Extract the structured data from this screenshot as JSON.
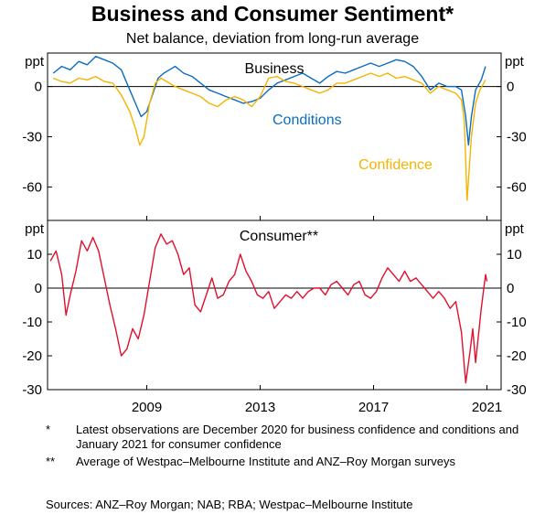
{
  "title": "Business and Consumer Sentiment*",
  "subtitle": "Net balance, deviation from long-run average",
  "colors": {
    "conditions": "#0a6dc1",
    "confidence": "#f4b400",
    "consumer": "#e0102f"
  },
  "notes": [
    {
      "mark": "*",
      "text": "Latest observations are December 2020 for business confidence and conditions and January 2021 for consumer confidence"
    },
    {
      "mark": "**",
      "text": "Average of Westpac–Melbourne Institute and ANZ–Roy Morgan surveys"
    }
  ],
  "sources": "Sources: ANZ–Roy Morgan; NAB; RBA; Westpac–Melbourne Institute",
  "chart_data": [
    {
      "type": "line",
      "title": "Business",
      "unit_label": "ppt",
      "ylim": [
        -80,
        20
      ],
      "yticks": [
        0,
        -30,
        -60
      ],
      "ytick_labels": [
        "0",
        "-30",
        "-60"
      ],
      "xlim": [
        2005.5,
        2021.5
      ],
      "xticks": [
        2009,
        2013,
        2017,
        2021
      ],
      "series": [
        {
          "name": "Conditions",
          "color_key": "conditions",
          "x": [
            2005.7,
            2006.0,
            2006.3,
            2006.6,
            2006.9,
            2007.2,
            2007.5,
            2007.8,
            2008.1,
            2008.4,
            2008.6,
            2008.8,
            2009.0,
            2009.2,
            2009.4,
            2009.6,
            2009.8,
            2010.0,
            2010.3,
            2010.6,
            2010.9,
            2011.2,
            2011.5,
            2011.8,
            2012.1,
            2012.4,
            2012.7,
            2013.0,
            2013.3,
            2013.6,
            2013.9,
            2014.2,
            2014.5,
            2014.8,
            2015.1,
            2015.4,
            2015.7,
            2016.0,
            2016.3,
            2016.6,
            2016.9,
            2017.2,
            2017.5,
            2017.8,
            2018.1,
            2018.4,
            2018.7,
            2019.0,
            2019.3,
            2019.6,
            2019.9,
            2020.1,
            2020.25,
            2020.35,
            2020.45,
            2020.6,
            2020.8,
            2020.95
          ],
          "values": [
            8,
            12,
            10,
            15,
            13,
            18,
            16,
            14,
            10,
            -2,
            -10,
            -18,
            -15,
            -5,
            5,
            8,
            10,
            12,
            8,
            6,
            2,
            -2,
            -4,
            -6,
            -8,
            -10,
            -9,
            -7,
            -2,
            2,
            4,
            6,
            8,
            5,
            2,
            6,
            9,
            8,
            10,
            12,
            14,
            12,
            14,
            16,
            15,
            12,
            6,
            -2,
            2,
            0,
            0,
            -2,
            -18,
            -35,
            -18,
            -2,
            4,
            12
          ]
        },
        {
          "name": "Confidence",
          "color_key": "confidence",
          "x": [
            2005.7,
            2006.0,
            2006.3,
            2006.6,
            2006.9,
            2007.2,
            2007.5,
            2007.8,
            2008.1,
            2008.4,
            2008.6,
            2008.75,
            2008.9,
            2009.1,
            2009.3,
            2009.5,
            2009.8,
            2010.0,
            2010.3,
            2010.6,
            2010.9,
            2011.2,
            2011.5,
            2011.8,
            2012.1,
            2012.4,
            2012.7,
            2013.0,
            2013.3,
            2013.6,
            2013.9,
            2014.2,
            2014.5,
            2014.8,
            2015.1,
            2015.4,
            2015.7,
            2016.0,
            2016.3,
            2016.6,
            2016.9,
            2017.2,
            2017.5,
            2017.8,
            2018.1,
            2018.4,
            2018.7,
            2019.0,
            2019.3,
            2019.6,
            2019.9,
            2020.1,
            2020.2,
            2020.3,
            2020.45,
            2020.6,
            2020.75,
            2020.95
          ],
          "values": [
            5,
            3,
            2,
            5,
            4,
            6,
            3,
            2,
            -5,
            -15,
            -25,
            -35,
            -30,
            -10,
            2,
            5,
            2,
            0,
            -2,
            -4,
            -6,
            -10,
            -12,
            -8,
            -6,
            -8,
            -12,
            -6,
            5,
            6,
            3,
            2,
            0,
            -2,
            -4,
            -2,
            2,
            2,
            4,
            6,
            8,
            6,
            8,
            5,
            6,
            4,
            2,
            -4,
            0,
            -2,
            -4,
            -8,
            -20,
            -68,
            -30,
            -10,
            -2,
            4
          ]
        }
      ],
      "annotations": [
        "Conditions",
        "Confidence"
      ]
    },
    {
      "type": "line",
      "title": "Consumer**",
      "unit_label": "ppt",
      "ylim": [
        -30,
        20
      ],
      "yticks": [
        10,
        0,
        -10,
        -20,
        -30
      ],
      "ytick_labels": [
        "10",
        "0",
        "-10",
        "-20",
        "-30"
      ],
      "xlim": [
        2005.5,
        2021.5
      ],
      "xticks": [
        2009,
        2013,
        2017,
        2021
      ],
      "xtick_labels": [
        "2009",
        "2013",
        "2017",
        "2021"
      ],
      "series": [
        {
          "name": "Consumer**",
          "color_key": "consumer",
          "x": [
            2005.6,
            2005.8,
            2006.0,
            2006.15,
            2006.3,
            2006.5,
            2006.7,
            2006.9,
            2007.1,
            2007.3,
            2007.5,
            2007.7,
            2007.9,
            2008.1,
            2008.3,
            2008.5,
            2008.7,
            2008.9,
            2009.1,
            2009.3,
            2009.5,
            2009.7,
            2009.9,
            2010.1,
            2010.3,
            2010.5,
            2010.7,
            2010.9,
            2011.1,
            2011.3,
            2011.5,
            2011.7,
            2011.9,
            2012.1,
            2012.3,
            2012.5,
            2012.7,
            2012.9,
            2013.1,
            2013.3,
            2013.5,
            2013.7,
            2013.9,
            2014.1,
            2014.3,
            2014.5,
            2014.7,
            2014.9,
            2015.1,
            2015.3,
            2015.5,
            2015.7,
            2015.9,
            2016.1,
            2016.3,
            2016.5,
            2016.7,
            2016.9,
            2017.1,
            2017.3,
            2017.5,
            2017.7,
            2017.9,
            2018.1,
            2018.3,
            2018.5,
            2018.7,
            2018.9,
            2019.1,
            2019.3,
            2019.5,
            2019.7,
            2019.9,
            2020.1,
            2020.25,
            2020.4,
            2020.5,
            2020.6,
            2020.8,
            2020.95,
            2021.0
          ],
          "values": [
            8,
            11,
            4,
            -8,
            -2,
            5,
            14,
            11,
            15,
            11,
            3,
            -5,
            -12,
            -20,
            -18,
            -12,
            -15,
            -8,
            2,
            12,
            16,
            13,
            14,
            10,
            4,
            6,
            -5,
            -7,
            -2,
            3,
            -3,
            -2,
            2,
            4,
            10,
            5,
            2,
            -2,
            -3,
            -1,
            -6,
            -4,
            -2,
            -3,
            -1,
            -3,
            -1,
            0,
            0,
            -2,
            1,
            2,
            0,
            -2,
            1,
            2,
            -2,
            -3,
            -1,
            3,
            6,
            4,
            2,
            5,
            2,
            3,
            1,
            -1,
            -3,
            -1,
            -3,
            -6,
            -4,
            -13,
            -28,
            -19,
            -12,
            -22,
            -6,
            4,
            2
          ]
        }
      ]
    }
  ]
}
